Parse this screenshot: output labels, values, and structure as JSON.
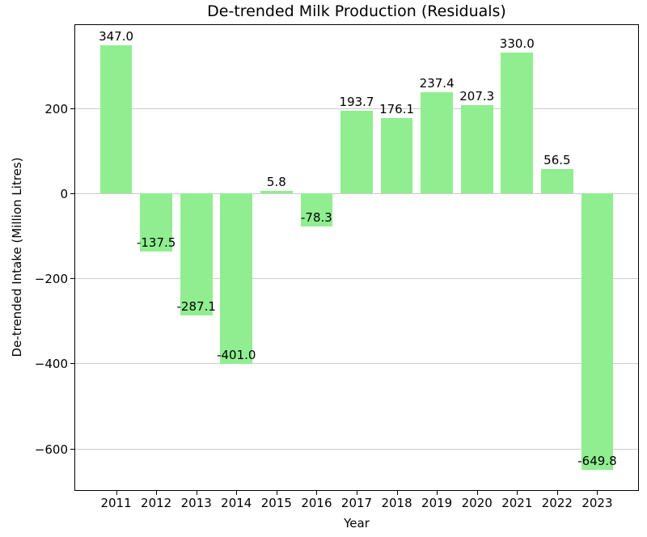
{
  "chart_data": {
    "type": "bar",
    "title": "De-trended Milk Production (Residuals)",
    "xlabel": "Year",
    "ylabel": "De-trended Intake (Million Litres)",
    "categories": [
      "2011",
      "2012",
      "2013",
      "2014",
      "2015",
      "2016",
      "2017",
      "2018",
      "2019",
      "2020",
      "2021",
      "2022",
      "2023"
    ],
    "values": [
      347.0,
      -137.5,
      -287.1,
      -401.0,
      5.8,
      -78.3,
      193.7,
      176.1,
      237.4,
      207.3,
      330.0,
      56.5,
      -649.8
    ],
    "value_labels": [
      "347.0",
      "-137.5",
      "-287.1",
      "-401.0",
      "5.8",
      "-78.3",
      "193.7",
      "176.1",
      "237.4",
      "207.3",
      "330.0",
      "56.5",
      "-649.8"
    ],
    "yticks": [
      200,
      0,
      -200,
      -400,
      -600
    ],
    "ytick_labels": [
      "200",
      "0",
      "−200",
      "−400",
      "−600"
    ],
    "ylim": [
      -699.6,
      396.8
    ],
    "bar_color": "#90EE90",
    "grid_color": "#cccccc",
    "grid": "horizontal-only",
    "legend_position": "none",
    "bar_width_fraction": 0.8,
    "x_margin_units": 1.04
  }
}
